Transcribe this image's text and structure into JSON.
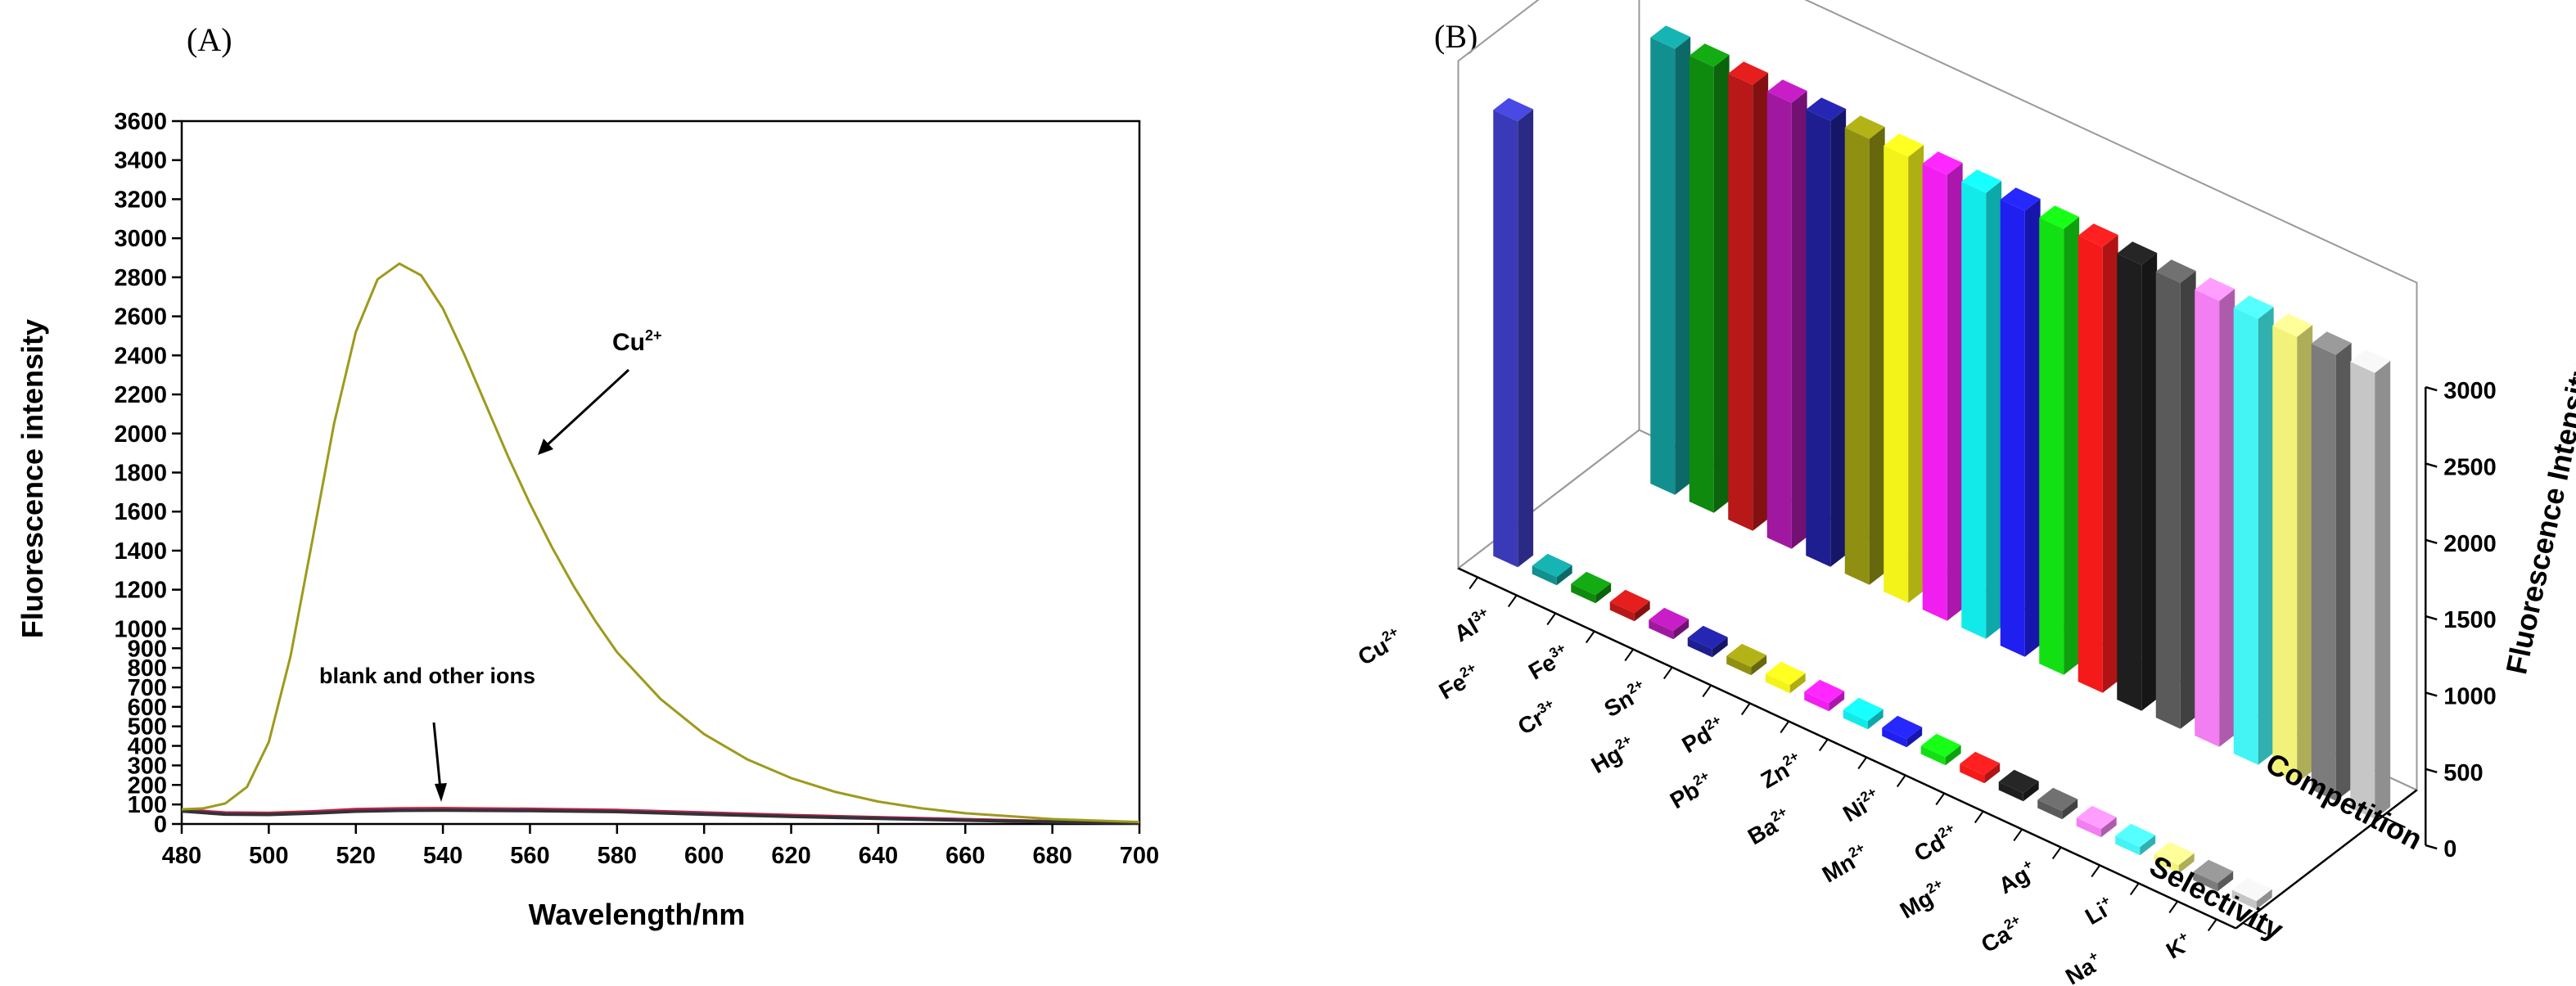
{
  "chart_data": [
    {
      "type": "line",
      "panel_label": "(A)",
      "xlabel": "Wavelength/nm",
      "ylabel": "Fluorescence intensity",
      "xlim": [
        480,
        700
      ],
      "ylim": [
        0,
        3600
      ],
      "xticks": [
        "480",
        "500",
        "520",
        "540",
        "560",
        "580",
        "600",
        "620",
        "640",
        "660",
        "680",
        "700"
      ],
      "yticks": [
        "0",
        "100",
        "200",
        "300",
        "400",
        "500",
        "600",
        "700",
        "800",
        "900",
        "1000",
        "1200",
        "1400",
        "1600",
        "1800",
        "2000",
        "2200",
        "2400",
        "2600",
        "2800",
        "3000",
        "3200",
        "3400",
        "3600"
      ],
      "series": [
        {
          "name": "Cu2+",
          "color": "#9e9a1c",
          "x": [
            480,
            485,
            490,
            495,
            500,
            505,
            510,
            515,
            520,
            525,
            530,
            535,
            540,
            545,
            550,
            555,
            560,
            565,
            570,
            575,
            580,
            590,
            600,
            610,
            620,
            630,
            640,
            650,
            660,
            680,
            700
          ],
          "y": [
            75,
            80,
            105,
            190,
            420,
            860,
            1450,
            2050,
            2520,
            2790,
            2870,
            2810,
            2640,
            2400,
            2140,
            1880,
            1640,
            1420,
            1220,
            1040,
            880,
            640,
            460,
            330,
            235,
            165,
            115,
            80,
            55,
            25,
            10
          ]
        },
        {
          "name": "blank",
          "color": "#2a2a9a",
          "x": [
            480,
            490,
            500,
            510,
            520,
            530,
            540,
            560,
            580,
            600,
            620,
            640,
            660,
            680,
            700
          ],
          "y": [
            70,
            55,
            52,
            60,
            70,
            74,
            75,
            73,
            68,
            55,
            42,
            32,
            22,
            12,
            6
          ]
        },
        {
          "name": "other ions (red)",
          "color": "#cc1f1f",
          "x": [
            480,
            490,
            500,
            510,
            520,
            530,
            540,
            560,
            580,
            600,
            620,
            640,
            660,
            680,
            700
          ],
          "y": [
            72,
            57,
            55,
            63,
            74,
            78,
            79,
            76,
            70,
            57,
            44,
            33,
            23,
            12,
            6
          ]
        },
        {
          "name": "other ions (magenta)",
          "color": "#b01fb0",
          "x": [
            480,
            490,
            500,
            510,
            520,
            530,
            540,
            560,
            580,
            600,
            620,
            640,
            660,
            680,
            700
          ],
          "y": [
            68,
            53,
            50,
            58,
            68,
            72,
            73,
            71,
            66,
            53,
            40,
            30,
            21,
            11,
            5
          ]
        },
        {
          "name": "other ions (dark)",
          "color": "#333333",
          "x": [
            480,
            490,
            500,
            510,
            520,
            530,
            540,
            560,
            580,
            600,
            620,
            640,
            660,
            680,
            700
          ],
          "y": [
            66,
            50,
            48,
            55,
            65,
            69,
            70,
            68,
            63,
            50,
            38,
            28,
            19,
            10,
            5
          ]
        }
      ],
      "annotations": [
        {
          "text": "Cu",
          "sup": "2+"
        },
        {
          "text": "blank and other ions"
        }
      ]
    },
    {
      "type": "bar",
      "panel_label": "(B)",
      "zlabel": "Fluorescence Intensity",
      "zlim": [
        0,
        3000
      ],
      "zticks": [
        "0",
        "500",
        "1000",
        "1500",
        "2000",
        "2500",
        "3000"
      ],
      "row_labels": [
        "Competition",
        "Selectivity"
      ],
      "categories": [
        {
          "b": "Cu",
          "s": "2+"
        },
        {
          "b": "Al",
          "s": "3+"
        },
        {
          "b": "Fe",
          "s": "2+"
        },
        {
          "b": "Fe",
          "s": "3+"
        },
        {
          "b": "Cr",
          "s": "3+"
        },
        {
          "b": "Sn",
          "s": "2+"
        },
        {
          "b": "Hg",
          "s": "2+"
        },
        {
          "b": "Pd",
          "s": "2+"
        },
        {
          "b": "Pb",
          "s": "2+"
        },
        {
          "b": "Zn",
          "s": "2+"
        },
        {
          "b": "Ba",
          "s": "2+"
        },
        {
          "b": "Ni",
          "s": "2+"
        },
        {
          "b": "Mn",
          "s": "2+"
        },
        {
          "b": "Cd",
          "s": "2+"
        },
        {
          "b": "Mg",
          "s": "2+"
        },
        {
          "b": "Ag",
          "s": "+"
        },
        {
          "b": "Ca",
          "s": "2+"
        },
        {
          "b": "Li",
          "s": "+"
        },
        {
          "b": "Na",
          "s": "+"
        },
        {
          "b": "K",
          "s": "+"
        }
      ],
      "colors": [
        "#3a3ab8",
        "#129090",
        "#0f8a0f",
        "#b81818",
        "#a018a0",
        "#1e1e90",
        "#8f8f12",
        "#f3f31a",
        "#f01ff0",
        "#12eaea",
        "#1f1ff0",
        "#12e012",
        "#f51a1a",
        "#1e1e1e",
        "#5a5a5a",
        "#f27ef2",
        "#44f4f4",
        "#f2f27a",
        "#7c7c7c",
        "#c6c6c6"
      ],
      "series": [
        {
          "name": "Competition",
          "values": [
            null,
            2920,
            2920,
            2920,
            2920,
            2920,
            2920,
            2920,
            2920,
            2920,
            2920,
            2920,
            2920,
            2920,
            2920,
            2920,
            2920,
            2920,
            2920,
            2920
          ]
        },
        {
          "name": "Selectivity",
          "values": [
            2920,
            50,
            50,
            50,
            50,
            50,
            50,
            50,
            50,
            50,
            50,
            50,
            50,
            50,
            50,
            50,
            50,
            50,
            50,
            50
          ]
        }
      ]
    }
  ]
}
